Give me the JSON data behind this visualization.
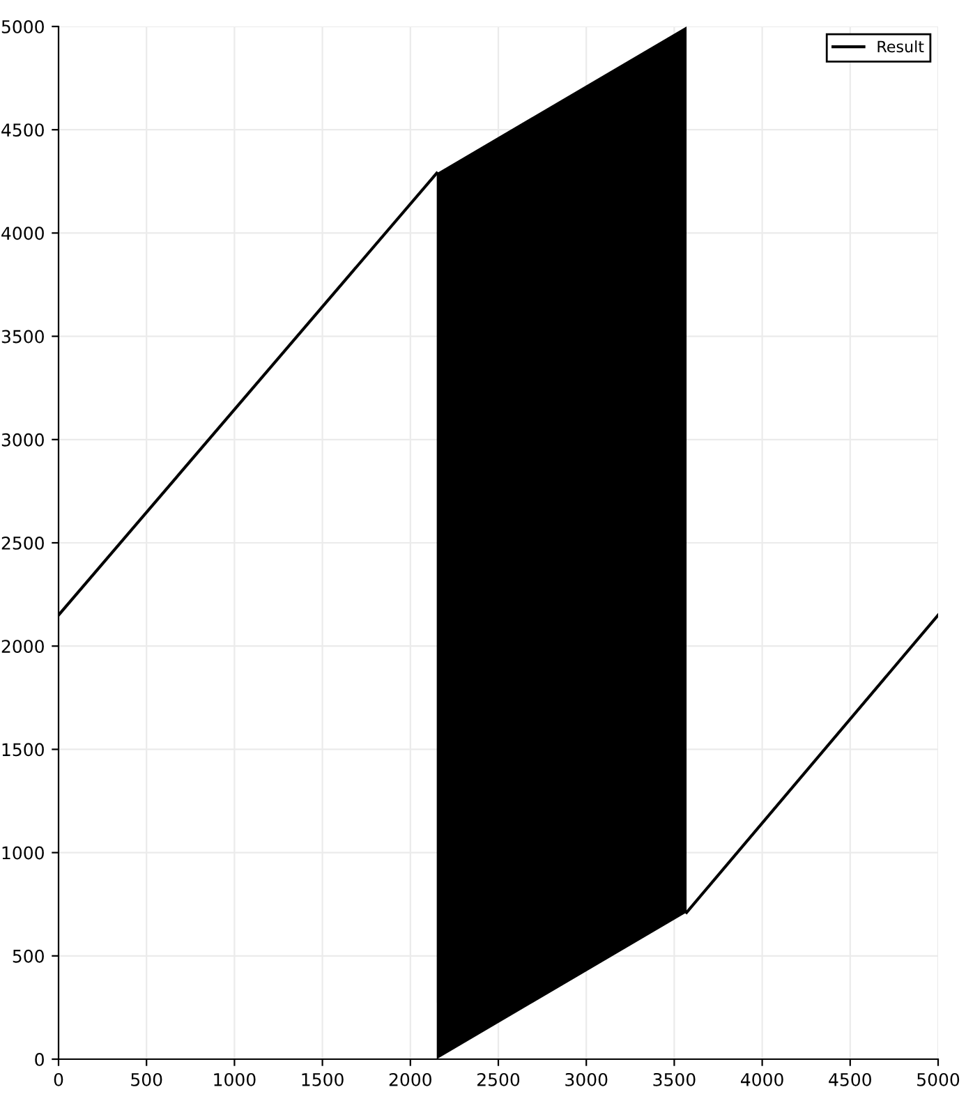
{
  "chart_data": {
    "type": "line",
    "x": [
      0,
      2150,
      2150,
      3570,
      3570,
      5000
    ],
    "series": [
      {
        "name": "Result",
        "color": "#000000",
        "values": [
          2150,
          4290,
          null,
          null,
          710,
          2150
        ],
        "lower": [
          null,
          null,
          0,
          710,
          null,
          null
        ],
        "upper": [
          null,
          null,
          4290,
          5000,
          null,
          null
        ]
      }
    ],
    "xlim": [
      0,
      5000
    ],
    "ylim": [
      0,
      5000
    ],
    "xticks": [
      0,
      500,
      1000,
      1500,
      2000,
      2500,
      3000,
      3500,
      4000,
      4500,
      5000
    ],
    "yticks": [
      0,
      500,
      1000,
      1500,
      2000,
      2500,
      3000,
      3500,
      4000,
      4500,
      5000
    ],
    "grid": true,
    "legend": "top right",
    "line_style": "solid",
    "marker": "none"
  }
}
